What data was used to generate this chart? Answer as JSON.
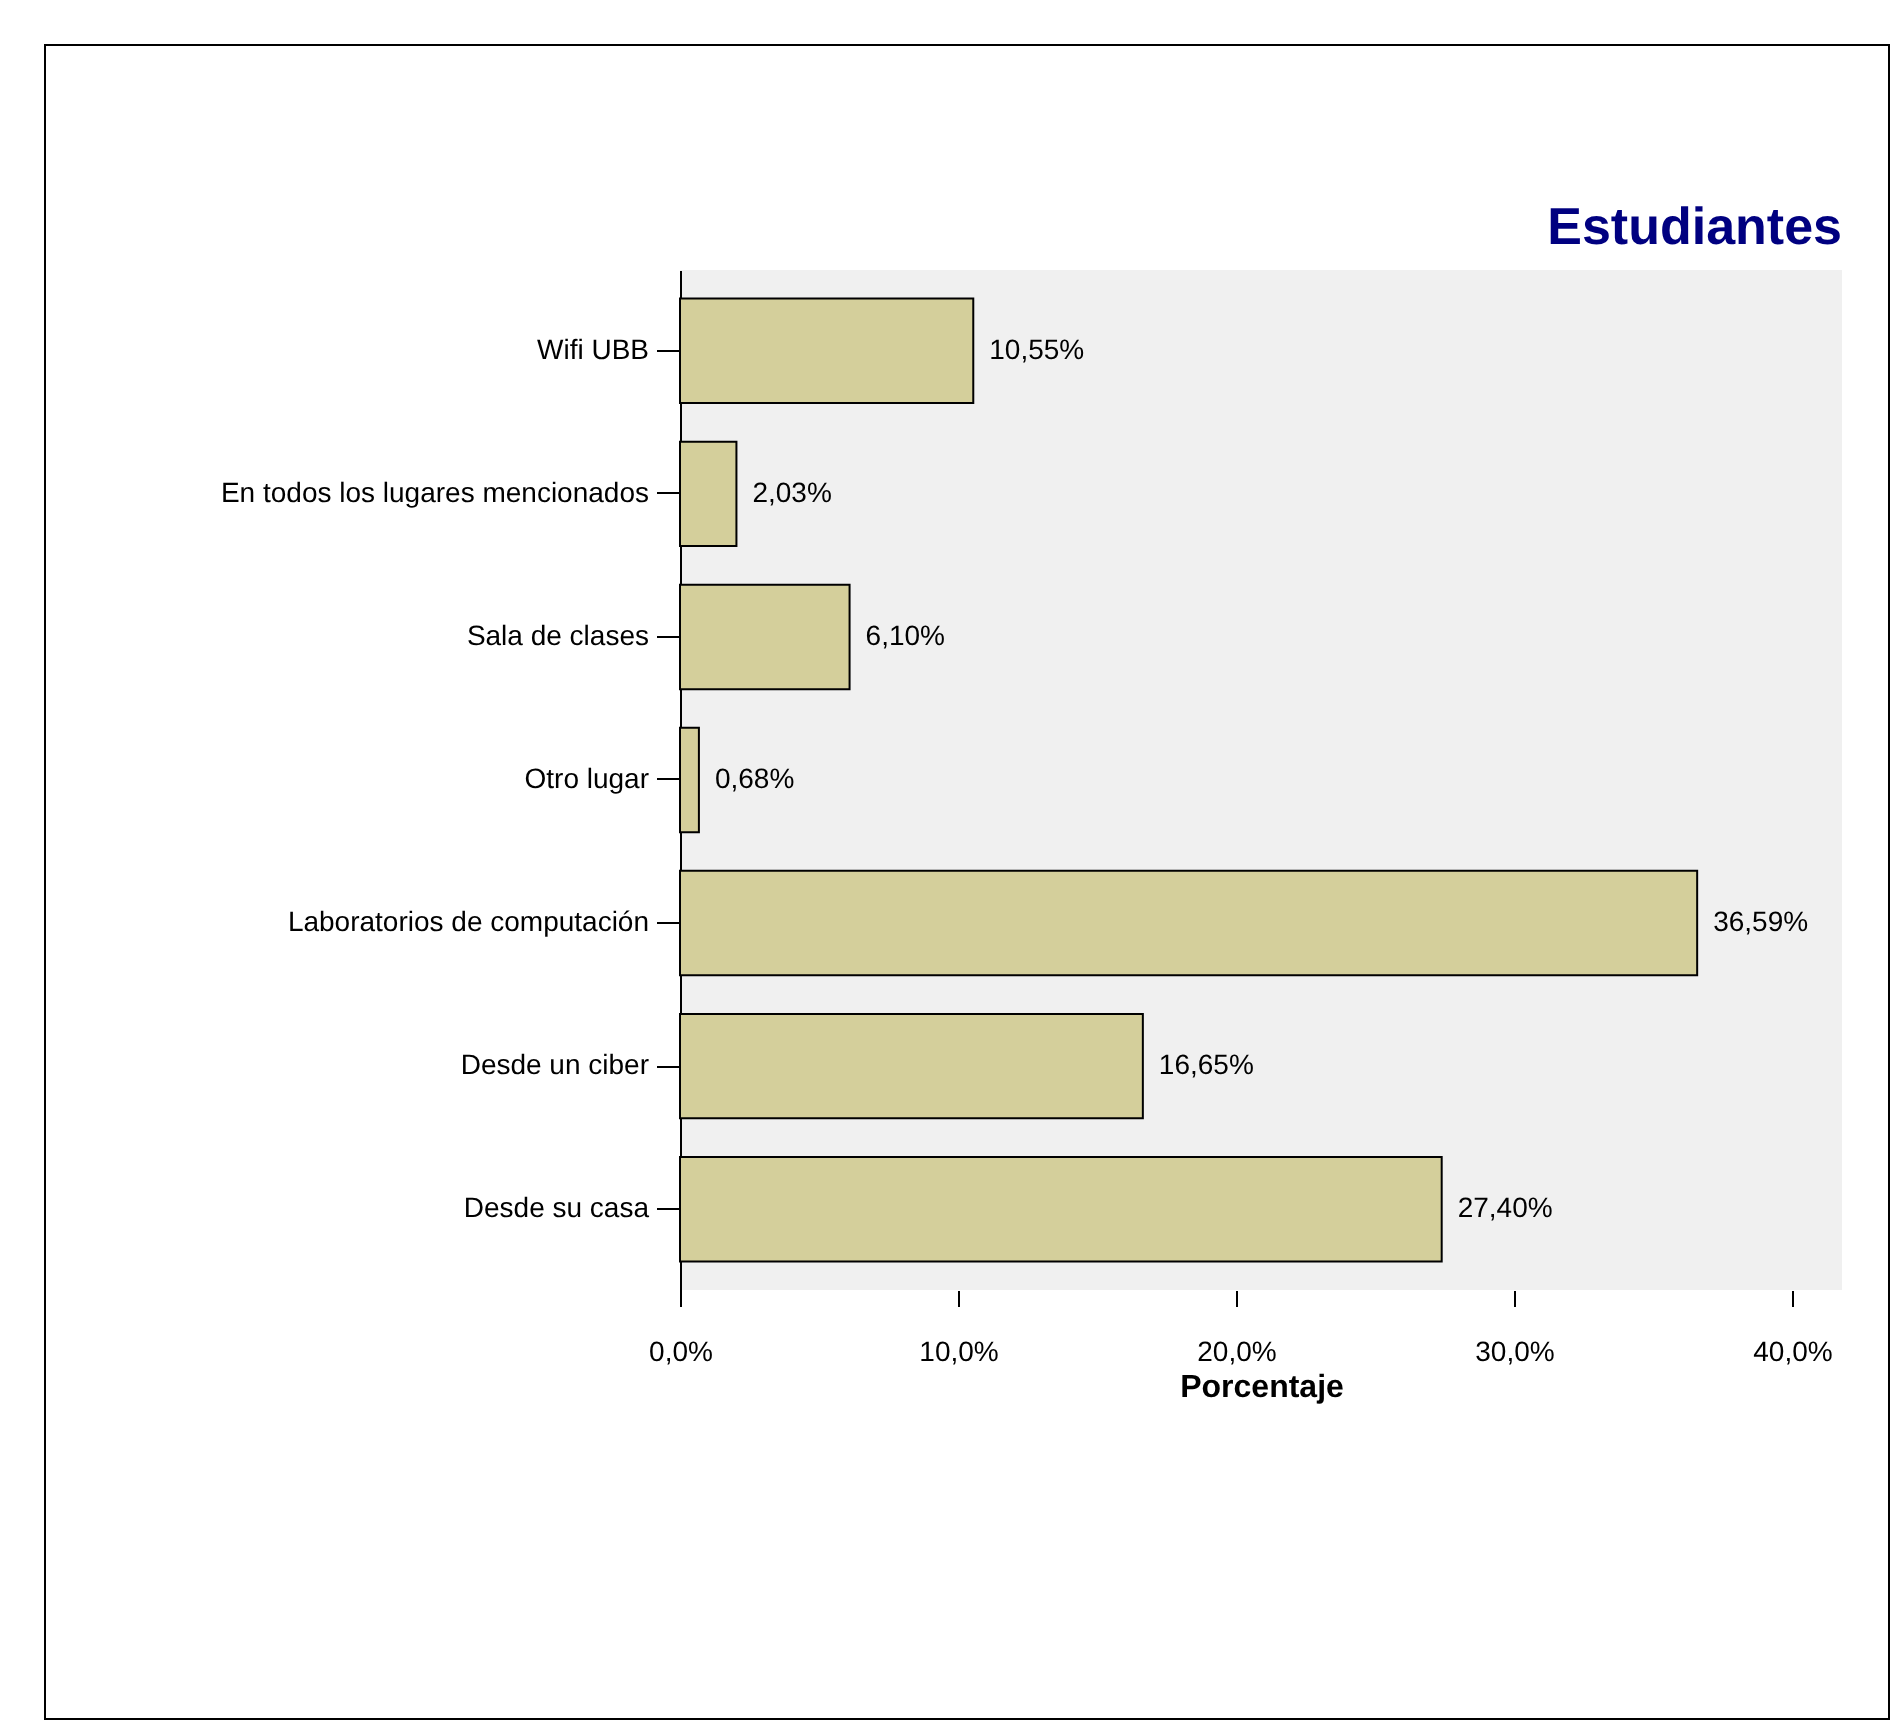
{
  "chart_data": {
    "type": "bar",
    "orientation": "horizontal",
    "title": "Estudiantes",
    "xlabel": "Porcentaje",
    "categories": [
      "Wifi UBB",
      "En todos los lugares mencionados",
      "Sala de clases",
      "Otro lugar",
      "Laboratorios de computación",
      "Desde un ciber",
      "Desde su casa"
    ],
    "values": [
      10.55,
      2.03,
      6.1,
      0.68,
      36.59,
      16.65,
      27.4
    ],
    "value_labels": [
      "10,55%",
      "2,03%",
      "6,10%",
      "0,68%",
      "36,59%",
      "16,65%",
      "27,40%"
    ],
    "color": "#d4cf9b",
    "xlim": [
      0,
      41.8
    ],
    "xticks": [
      {
        "value": 0,
        "label": "0,0%"
      },
      {
        "value": 10,
        "label": "10,0%"
      },
      {
        "value": 20,
        "label": "20,0%"
      },
      {
        "value": 30,
        "label": "30,0%"
      },
      {
        "value": 40,
        "label": "40,0%"
      }
    ],
    "grid": false
  }
}
